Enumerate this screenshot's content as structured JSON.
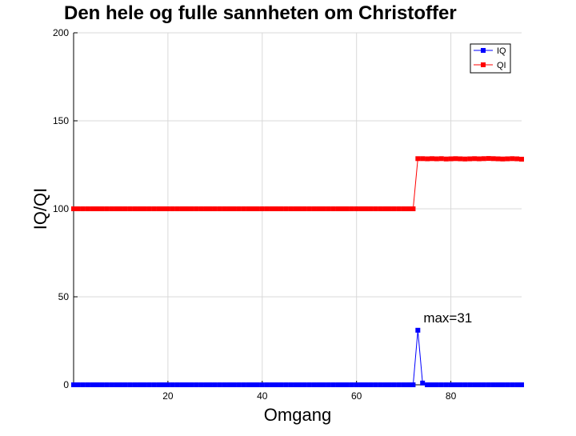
{
  "chart_data": {
    "type": "line",
    "title": "Den hele og fulle sannheten om Christoffer",
    "xlabel": "Omgang",
    "ylabel": "IQ/QI",
    "xlim": [
      0,
      95
    ],
    "ylim": [
      0,
      200
    ],
    "xticks": [
      20,
      40,
      60,
      80
    ],
    "yticks": [
      0,
      50,
      100,
      150,
      200
    ],
    "grid": true,
    "legend_position": "top-right",
    "annotation": {
      "text": "max=31",
      "x": 73,
      "y": 31
    },
    "series": [
      {
        "name": "IQ",
        "color": "#0000ff",
        "marker": "square",
        "x_start": 0,
        "values": [
          0,
          0,
          0,
          0,
          0,
          0,
          0,
          0,
          0,
          0,
          0,
          0,
          0,
          0,
          0,
          0,
          0,
          0,
          0,
          0,
          0,
          0,
          0,
          0,
          0,
          0,
          0,
          0,
          0,
          0,
          0,
          0,
          0,
          0,
          0,
          0,
          0,
          0,
          0,
          0,
          0,
          0,
          0,
          0,
          0,
          0,
          0,
          0,
          0,
          0,
          0,
          0,
          0,
          0,
          0,
          0,
          0,
          0,
          0,
          0,
          0,
          0,
          0,
          0,
          0,
          0,
          0,
          0,
          0,
          0,
          0,
          0,
          0,
          31,
          1,
          0,
          0,
          0,
          0,
          0,
          0,
          0,
          0,
          0,
          0,
          0,
          0,
          0,
          0,
          0,
          0,
          0,
          0,
          0,
          0,
          0
        ]
      },
      {
        "name": "QI",
        "color": "#ff0000",
        "marker": "square",
        "x_start": 0,
        "values": [
          100,
          100,
          100,
          100,
          100,
          100,
          100,
          100,
          100,
          100,
          100,
          100,
          100,
          100,
          100,
          100,
          100,
          100,
          100,
          100,
          100,
          100,
          100,
          100,
          100,
          100,
          100,
          100,
          100,
          100,
          100,
          100,
          100,
          100,
          100,
          100,
          100,
          100,
          100,
          100,
          100,
          100,
          100,
          100,
          100,
          100,
          100,
          100,
          100,
          100,
          100,
          100,
          100,
          100,
          100,
          100,
          100,
          100,
          100,
          100,
          100,
          100,
          100,
          100,
          100,
          100,
          100,
          100,
          100,
          100,
          100,
          100,
          100,
          128.5,
          128.5,
          128.4,
          128.5,
          128.4,
          128.5,
          128.3,
          128.4,
          128.5,
          128.4,
          128.3,
          128.4,
          128.5,
          128.4,
          128.5,
          128.6,
          128.5,
          128.4,
          128.3,
          128.4,
          128.5,
          128.4,
          128.2
        ]
      }
    ]
  }
}
